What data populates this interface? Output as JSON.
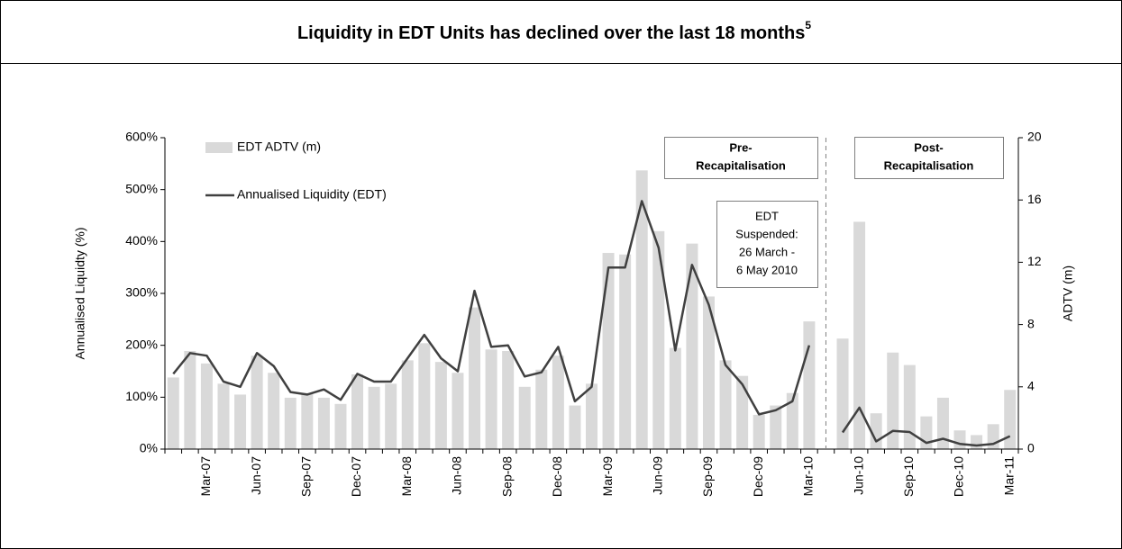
{
  "chart_data": {
    "type": "bar_line",
    "title": "Liquidity in EDT Units has declined over the last 18 months",
    "title_footnote": "5",
    "y_label": "Annualised Liquidty (%)",
    "y2_label": "ADTV (m)",
    "categories": [
      null,
      null,
      "Mar-07",
      null,
      null,
      "Jun-07",
      null,
      null,
      "Sep-07",
      null,
      null,
      "Dec-07",
      null,
      null,
      "Mar-08",
      null,
      null,
      "Jun-08",
      null,
      null,
      "Sep-08",
      null,
      null,
      "Dec-08",
      null,
      null,
      "Mar-09",
      null,
      null,
      "Jun-09",
      null,
      null,
      "Sep-09",
      null,
      null,
      "Dec-09",
      null,
      null,
      "Mar-10",
      null,
      null,
      "Jun-10",
      null,
      null,
      "Sep-10",
      null,
      null,
      "Dec-10",
      null,
      null,
      "Mar-11"
    ],
    "series": [
      {
        "name": "EDT ADTV (m)",
        "type": "bar",
        "axis": "y2",
        "color": "#d9d9d9",
        "values": [
          4.6,
          6.3,
          5.5,
          4.2,
          3.5,
          6.0,
          4.9,
          3.3,
          3.6,
          3.3,
          2.9,
          4.8,
          4.0,
          4.2,
          5.7,
          6.8,
          5.6,
          4.9,
          9.1,
          6.4,
          6.3,
          4.0,
          5.1,
          6.0,
          2.8,
          4.2,
          12.6,
          12.5,
          17.9,
          14.0,
          6.5,
          13.2,
          9.8,
          5.7,
          4.7,
          2.2,
          2.8,
          3.6,
          8.2,
          null,
          7.1,
          14.6,
          2.3,
          6.2,
          5.4,
          2.1,
          3.3,
          1.2,
          0.9,
          1.6,
          3.8
        ]
      },
      {
        "name": "Annualised Liquidity (EDT)",
        "type": "line",
        "axis": "y",
        "color": "#404040",
        "values": [
          145,
          185,
          180,
          130,
          120,
          185,
          160,
          110,
          105,
          115,
          95,
          145,
          130,
          130,
          175,
          220,
          175,
          150,
          305,
          197,
          200,
          140,
          148,
          197,
          92,
          120,
          350,
          350,
          478,
          388,
          190,
          355,
          278,
          162,
          125,
          67,
          75,
          92,
          200,
          null,
          32,
          80,
          15,
          35,
          33,
          12,
          20,
          10,
          7,
          10,
          25
        ]
      }
    ],
    "ylim": [
      0,
      600
    ],
    "yticks": [
      {
        "value": 0,
        "label": "0%"
      },
      {
        "value": 100,
        "label": "100%"
      },
      {
        "value": 200,
        "label": "200%"
      },
      {
        "value": 300,
        "label": "300%"
      },
      {
        "value": 400,
        "label": "400%"
      },
      {
        "value": 500,
        "label": "500%"
      },
      {
        "value": 600,
        "label": "600%"
      }
    ],
    "y2lim": [
      0,
      20
    ],
    "y2ticks": [
      0,
      4,
      8,
      12,
      16,
      20
    ],
    "annotations": [
      {
        "lines": [
          "Pre-",
          "Recapitalisation"
        ]
      },
      {
        "lines": [
          "Post-",
          "Recapitalisation"
        ]
      },
      {
        "lines": [
          "EDT",
          "Suspended:",
          "26 March -",
          "6 May 2010"
        ]
      }
    ]
  }
}
